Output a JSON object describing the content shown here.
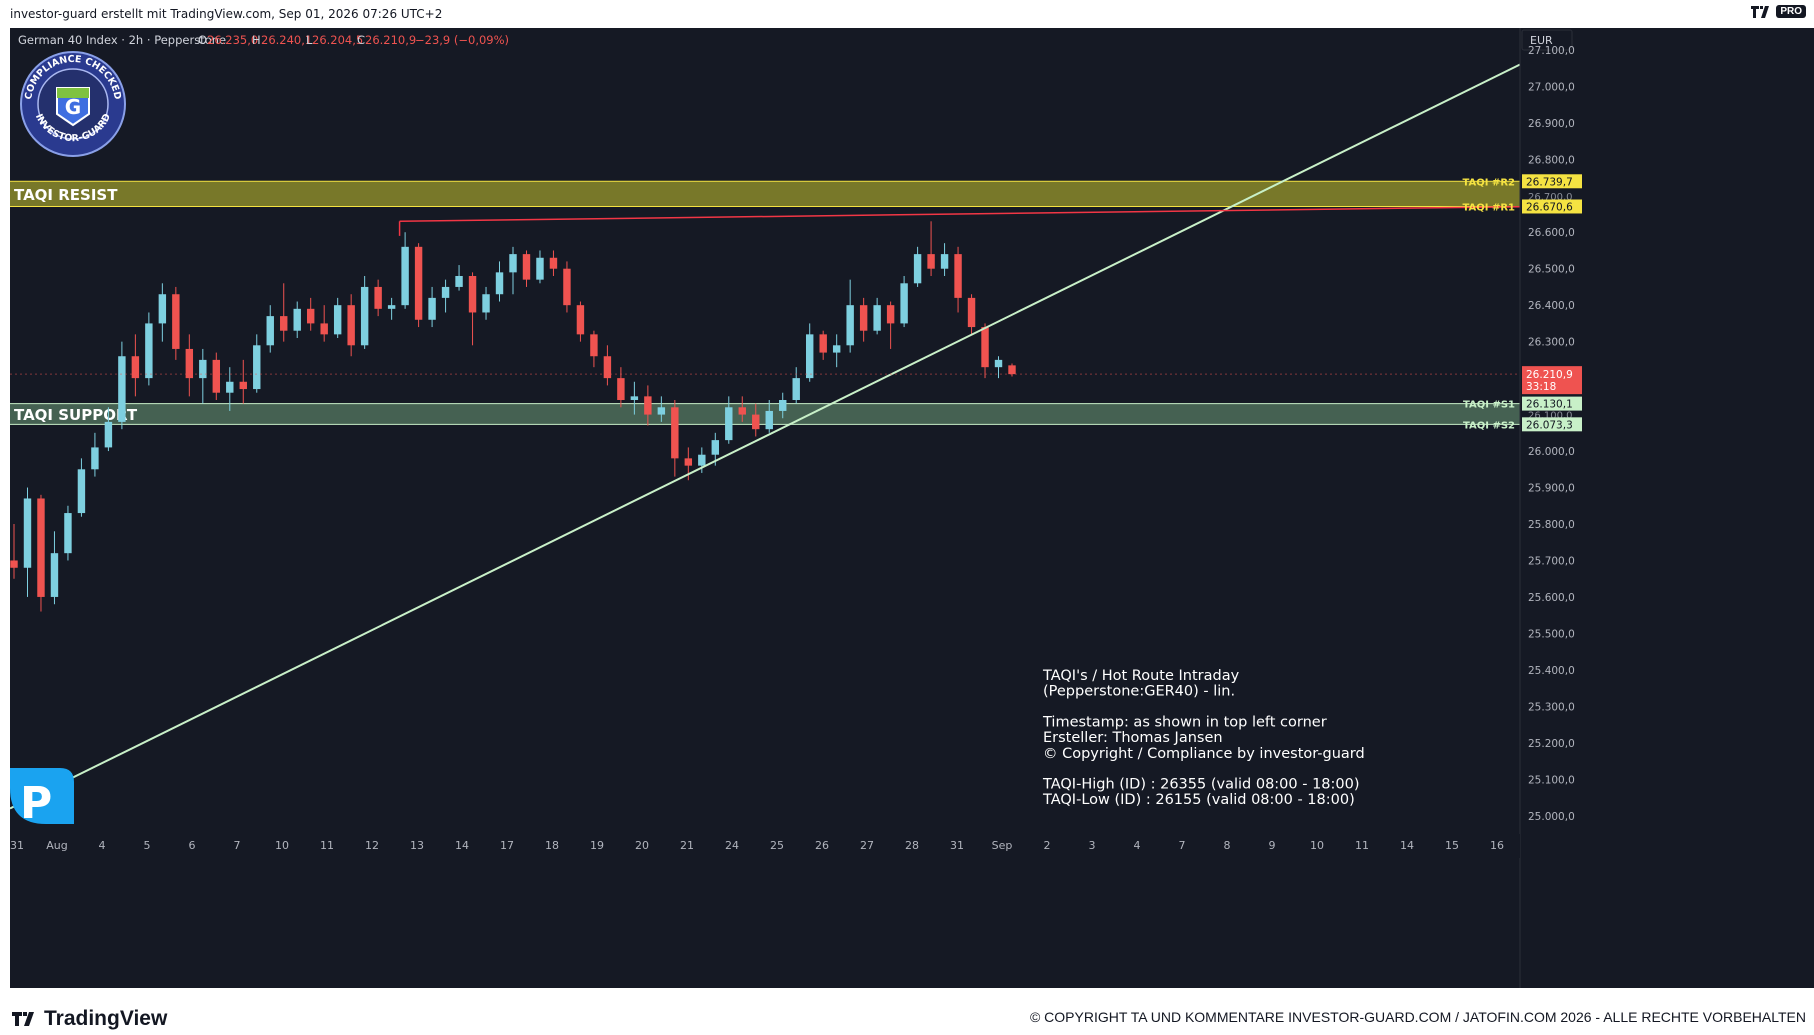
{
  "header": {
    "credit": "investor-guard erstellt mit TradingView.com, Sep 01, 2026 07:26 UTC+2",
    "pro_badge": "PRO"
  },
  "legend": {
    "symbol": "German 40 Index · 2h · Pepperstone",
    "open_label": "O",
    "open": "26.235,0",
    "high_label": "H",
    "high": "26.240,1",
    "low_label": "L",
    "low": "26.204,5",
    "close_label": "C",
    "close": "26.210,9",
    "change": "−23,9 (−0,09%)"
  },
  "currency": "EUR",
  "badge": {
    "top": "COMPLIANCE CHECKED",
    "bottom": "INVESTOR-GUARD",
    "letter": "G"
  },
  "zones": {
    "resist_label": "TAQI RESIST",
    "support_label": "TAQI SUPPORT"
  },
  "levels": [
    {
      "label": "TAQI #R2",
      "value": "26.739,7",
      "color": "#f5e342"
    },
    {
      "label": "TAQI #R1",
      "value": "26.670,6",
      "color": "#f5e342"
    },
    {
      "label": "TAQI #S1",
      "value": "26.130,1",
      "color": "#c8f0c8"
    },
    {
      "label": "TAQI #S2",
      "value": "26.073,3",
      "color": "#c8f0c8"
    }
  ],
  "hidden_tags": [
    "26.700,0",
    "26.100,0"
  ],
  "current_price": {
    "value": "26.210,9",
    "countdown": "33:18"
  },
  "info_box": [
    "TAQI's / Hot Route Intraday",
    "(Pepperstone:GER40) - lin.",
    "",
    "Timestamp: as shown in top left corner",
    "Ersteller: Thomas Jansen",
    "© Copyright / Compliance by investor-guard",
    "",
    "TAQI-High (ID) : 26355 (valid 08:00 - 18:00)",
    "TAQI-Low (ID) : 26155 (valid 08:00 - 18:00)"
  ],
  "footer": {
    "brand": "TradingView",
    "copyright": "© COPYRIGHT TA UND KOMMENTARE INVESTOR-GUARD.COM / JATOFIN.COM 2026 - ALLE RECHTE VORBEHALTEN"
  },
  "colors": {
    "background": "#151924",
    "up": "#7ed0e0",
    "down": "#ef5350",
    "trendline": "#c8f0c8",
    "resistline": "#f23645",
    "resist_zone": "#8a8a2a",
    "support_zone": "#4e6e5a"
  },
  "chart_data": {
    "type": "candlestick",
    "title": "German 40 Index · 2h · Pepperstone",
    "ylim": [
      24950,
      27160
    ],
    "y_ticks": [
      27100,
      27000,
      26900,
      26800,
      26600,
      26500,
      26400,
      26300,
      26000,
      25900,
      25800,
      25700,
      25600,
      25500,
      25400,
      25300,
      25200,
      25100,
      25000
    ],
    "y_tick_labels": [
      "27.100,0",
      "27.000,0",
      "26.900,0",
      "26.800,0",
      "26.600,0",
      "26.500,0",
      "26.400,0",
      "26.300,0",
      "26.000,0",
      "25.900,0",
      "25.800,0",
      "25.700,0",
      "25.600,0",
      "25.500,0",
      "25.400,0",
      "25.300,0",
      "25.200,0",
      "25.100,0",
      "25.000,0"
    ],
    "x_tick_labels": [
      "31",
      "Aug",
      "4",
      "5",
      "6",
      "7",
      "10",
      "11",
      "12",
      "13",
      "14",
      "17",
      "18",
      "19",
      "20",
      "21",
      "24",
      "25",
      "26",
      "27",
      "28",
      "31",
      "Sep",
      "2",
      "3",
      "4",
      "7",
      "8",
      "9",
      "10",
      "11",
      "14",
      "15",
      "16"
    ],
    "sessions": [
      {
        "label": "31",
        "o": 25700,
        "h": 25800,
        "l": 25650,
        "c": 25680
      },
      {
        "label": "31",
        "o": 25680,
        "h": 25900,
        "l": 25600,
        "c": 25870
      },
      {
        "label": "31",
        "o": 25870,
        "h": 25880,
        "l": 25560,
        "c": 25600
      },
      {
        "label": "31",
        "o": 25600,
        "h": 25780,
        "l": 25580,
        "c": 25720
      },
      {
        "label": "Aug",
        "o": 25720,
        "h": 25850,
        "l": 25700,
        "c": 25830
      },
      {
        "label": "Aug",
        "o": 25830,
        "h": 25980,
        "l": 25820,
        "c": 25950
      },
      {
        "label": "Aug",
        "o": 25950,
        "h": 26050,
        "l": 25930,
        "c": 26010
      },
      {
        "label": "Aug",
        "o": 26010,
        "h": 26120,
        "l": 26000,
        "c": 26080
      },
      {
        "label": "4",
        "o": 26080,
        "h": 26300,
        "l": 26060,
        "c": 26260
      },
      {
        "label": "4",
        "o": 26260,
        "h": 26320,
        "l": 26150,
        "c": 26200
      },
      {
        "label": "4",
        "o": 26200,
        "h": 26380,
        "l": 26180,
        "c": 26350
      },
      {
        "label": "5",
        "o": 26350,
        "h": 26460,
        "l": 26300,
        "c": 26430
      },
      {
        "label": "5",
        "o": 26430,
        "h": 26450,
        "l": 26250,
        "c": 26280
      },
      {
        "label": "5",
        "o": 26280,
        "h": 26320,
        "l": 26150,
        "c": 26200
      },
      {
        "label": "6",
        "o": 26200,
        "h": 26280,
        "l": 26130,
        "c": 26250
      },
      {
        "label": "6",
        "o": 26250,
        "h": 26270,
        "l": 26140,
        "c": 26160
      },
      {
        "label": "6",
        "o": 26160,
        "h": 26230,
        "l": 26110,
        "c": 26190
      },
      {
        "label": "7",
        "o": 26190,
        "h": 26250,
        "l": 26130,
        "c": 26170
      },
      {
        "label": "7",
        "o": 26170,
        "h": 26320,
        "l": 26160,
        "c": 26290
      },
      {
        "label": "7",
        "o": 26290,
        "h": 26400,
        "l": 26270,
        "c": 26370
      },
      {
        "label": "10",
        "o": 26370,
        "h": 26460,
        "l": 26300,
        "c": 26330
      },
      {
        "label": "10",
        "o": 26330,
        "h": 26410,
        "l": 26310,
        "c": 26390
      },
      {
        "label": "10",
        "o": 26390,
        "h": 26420,
        "l": 26330,
        "c": 26350
      },
      {
        "label": "11",
        "o": 26350,
        "h": 26400,
        "l": 26300,
        "c": 26320
      },
      {
        "label": "11",
        "o": 26320,
        "h": 26420,
        "l": 26310,
        "c": 26400
      },
      {
        "label": "11",
        "o": 26400,
        "h": 26430,
        "l": 26260,
        "c": 26290
      },
      {
        "label": "12",
        "o": 26290,
        "h": 26480,
        "l": 26280,
        "c": 26450
      },
      {
        "label": "12",
        "o": 26450,
        "h": 26470,
        "l": 26370,
        "c": 26390
      },
      {
        "label": "12",
        "o": 26390,
        "h": 26420,
        "l": 26360,
        "c": 26400
      },
      {
        "label": "12",
        "o": 26400,
        "h": 26600,
        "l": 26390,
        "c": 26560
      },
      {
        "label": "13",
        "o": 26560,
        "h": 26570,
        "l": 26340,
        "c": 26360
      },
      {
        "label": "13",
        "o": 26360,
        "h": 26450,
        "l": 26340,
        "c": 26420
      },
      {
        "label": "13",
        "o": 26420,
        "h": 26470,
        "l": 26380,
        "c": 26450
      },
      {
        "label": "13",
        "o": 26450,
        "h": 26510,
        "l": 26440,
        "c": 26480
      },
      {
        "label": "14",
        "o": 26480,
        "h": 26490,
        "l": 26290,
        "c": 26380
      },
      {
        "label": "14",
        "o": 26380,
        "h": 26450,
        "l": 26360,
        "c": 26430
      },
      {
        "label": "14",
        "o": 26430,
        "h": 26520,
        "l": 26410,
        "c": 26490
      },
      {
        "label": "17",
        "o": 26490,
        "h": 26560,
        "l": 26430,
        "c": 26540
      },
      {
        "label": "17",
        "o": 26540,
        "h": 26550,
        "l": 26450,
        "c": 26470
      },
      {
        "label": "17",
        "o": 26470,
        "h": 26550,
        "l": 26460,
        "c": 26530
      },
      {
        "label": "17",
        "o": 26530,
        "h": 26550,
        "l": 26480,
        "c": 26500
      },
      {
        "label": "18",
        "o": 26500,
        "h": 26520,
        "l": 26380,
        "c": 26400
      },
      {
        "label": "18",
        "o": 26400,
        "h": 26410,
        "l": 26300,
        "c": 26320
      },
      {
        "label": "18",
        "o": 26320,
        "h": 26330,
        "l": 26230,
        "c": 26260
      },
      {
        "label": "19",
        "o": 26260,
        "h": 26290,
        "l": 26180,
        "c": 26200
      },
      {
        "label": "19",
        "o": 26200,
        "h": 26230,
        "l": 26120,
        "c": 26140
      },
      {
        "label": "19",
        "o": 26140,
        "h": 26190,
        "l": 26100,
        "c": 26150
      },
      {
        "label": "20",
        "o": 26150,
        "h": 26180,
        "l": 26070,
        "c": 26100
      },
      {
        "label": "20",
        "o": 26100,
        "h": 26150,
        "l": 26080,
        "c": 26120
      },
      {
        "label": "20",
        "o": 26120,
        "h": 26140,
        "l": 25930,
        "c": 25980
      },
      {
        "label": "21",
        "o": 25980,
        "h": 26010,
        "l": 25920,
        "c": 25960
      },
      {
        "label": "21",
        "o": 25960,
        "h": 26010,
        "l": 25940,
        "c": 25990
      },
      {
        "label": "21",
        "o": 25990,
        "h": 26050,
        "l": 25960,
        "c": 26030
      },
      {
        "label": "24",
        "o": 26030,
        "h": 26150,
        "l": 26020,
        "c": 26120
      },
      {
        "label": "24",
        "o": 26120,
        "h": 26150,
        "l": 26080,
        "c": 26100
      },
      {
        "label": "24",
        "o": 26100,
        "h": 26130,
        "l": 26040,
        "c": 26060
      },
      {
        "label": "25",
        "o": 26060,
        "h": 26140,
        "l": 26050,
        "c": 26110
      },
      {
        "label": "25",
        "o": 26110,
        "h": 26160,
        "l": 26090,
        "c": 26140
      },
      {
        "label": "25",
        "o": 26140,
        "h": 26230,
        "l": 26130,
        "c": 26200
      },
      {
        "label": "26",
        "o": 26200,
        "h": 26350,
        "l": 26190,
        "c": 26320
      },
      {
        "label": "26",
        "o": 26320,
        "h": 26330,
        "l": 26250,
        "c": 26270
      },
      {
        "label": "26",
        "o": 26270,
        "h": 26320,
        "l": 26230,
        "c": 26290
      },
      {
        "label": "26",
        "o": 26290,
        "h": 26470,
        "l": 26270,
        "c": 26400
      },
      {
        "label": "27",
        "o": 26400,
        "h": 26420,
        "l": 26300,
        "c": 26330
      },
      {
        "label": "27",
        "o": 26330,
        "h": 26420,
        "l": 26320,
        "c": 26400
      },
      {
        "label": "27",
        "o": 26400,
        "h": 26410,
        "l": 26280,
        "c": 26350
      },
      {
        "label": "28",
        "o": 26350,
        "h": 26480,
        "l": 26340,
        "c": 26460
      },
      {
        "label": "28",
        "o": 26460,
        "h": 26560,
        "l": 26450,
        "c": 26540
      },
      {
        "label": "28",
        "o": 26540,
        "h": 26630,
        "l": 26480,
        "c": 26500
      },
      {
        "label": "31",
        "o": 26500,
        "h": 26570,
        "l": 26480,
        "c": 26540
      },
      {
        "label": "31",
        "o": 26540,
        "h": 26560,
        "l": 26380,
        "c": 26420
      },
      {
        "label": "31",
        "o": 26420,
        "h": 26430,
        "l": 26320,
        "c": 26340
      },
      {
        "label": "31",
        "o": 26340,
        "h": 26350,
        "l": 26200,
        "c": 26230
      },
      {
        "label": "Sep",
        "o": 26230,
        "h": 26260,
        "l": 26200,
        "c": 26250
      },
      {
        "label": "Sep",
        "o": 26235,
        "h": 26240.1,
        "l": 26204.5,
        "c": 26210.9
      }
    ],
    "annotations": [
      {
        "type": "zone",
        "label": "TAQI RESIST",
        "from": 26670.6,
        "to": 26739.7
      },
      {
        "type": "zone",
        "label": "TAQI SUPPORT",
        "from": 26073.3,
        "to": 26130.1
      },
      {
        "type": "trendline",
        "from": [
          0,
          25020
        ],
        "to": [
          1,
          27060
        ]
      },
      {
        "type": "resistance-line",
        "from": [
          0.258,
          26630
        ],
        "to": [
          1,
          26670
        ]
      }
    ]
  }
}
